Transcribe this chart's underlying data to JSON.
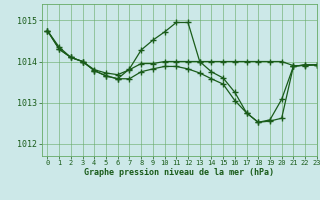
{
  "bg_color": "#cce8e8",
  "line_color": "#1a5c1a",
  "grid_color": "#66aa66",
  "xlabel": "Graphe pression niveau de la mer (hPa)",
  "xlabel_color": "#1a5c1a",
  "ylim": [
    1011.7,
    1015.4
  ],
  "xlim": [
    -0.5,
    23
  ],
  "yticks": [
    1012,
    1013,
    1014,
    1015
  ],
  "xticks": [
    0,
    1,
    2,
    3,
    4,
    5,
    6,
    7,
    8,
    9,
    10,
    11,
    12,
    13,
    14,
    15,
    16,
    17,
    18,
    19,
    20,
    21,
    22,
    23
  ],
  "series": [
    [
      1014.75,
      1014.35,
      1014.1,
      1014.0,
      1013.8,
      1013.72,
      1013.68,
      1013.8,
      1013.95,
      1013.95,
      1014.0,
      1014.0,
      1014.0,
      1014.0,
      1014.0,
      1014.0,
      1014.0,
      1014.0,
      1014.0,
      1014.0,
      1014.0,
      1013.9,
      1013.9,
      1013.92
    ],
    [
      1014.75,
      1014.3,
      1014.1,
      1014.0,
      1013.78,
      1013.65,
      1013.58,
      1013.82,
      1014.28,
      1014.52,
      1014.72,
      1014.95,
      1014.95,
      1014.0,
      1013.75,
      1013.6,
      1013.25,
      1012.75,
      1012.52,
      1012.58,
      1013.08,
      1013.88,
      1013.92,
      1013.92
    ],
    [
      1014.75,
      1014.3,
      1014.1,
      1014.0,
      1013.78,
      1013.65,
      1013.58,
      1013.58,
      1013.75,
      1013.82,
      1013.88,
      1013.88,
      1013.82,
      1013.72,
      1013.58,
      1013.45,
      1013.05,
      1012.75,
      1012.52,
      1012.55,
      1012.62,
      1013.88,
      1013.92,
      1013.92
    ]
  ],
  "marker": "+",
  "markersize": 4,
  "linewidth": 0.9
}
